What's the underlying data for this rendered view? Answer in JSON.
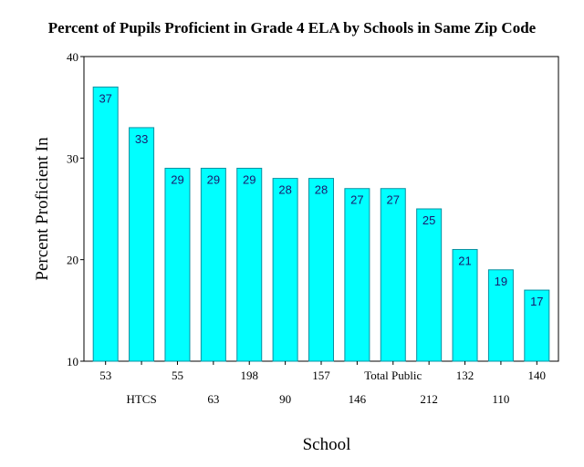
{
  "chart_data": {
    "type": "bar",
    "title": "Percent of Pupils Proficient in Grade 4 ELA by Schools in Same Zip Code",
    "xlabel": "School",
    "ylabel": "Percent Proficient In",
    "categories": [
      "53",
      "HTCS",
      "55",
      "63",
      "198",
      "90",
      "157",
      "146",
      "Total Public",
      "212",
      "132",
      "110",
      "140"
    ],
    "values": [
      37,
      33,
      29,
      29,
      29,
      28,
      28,
      27,
      27,
      25,
      21,
      19,
      17
    ],
    "ylim": [
      10,
      40
    ],
    "yticks": [
      10,
      20,
      30,
      40
    ],
    "grid": false,
    "legend": "none",
    "bar_color": "#00FFFF",
    "bar_edge_color": "#0a8fa0"
  }
}
